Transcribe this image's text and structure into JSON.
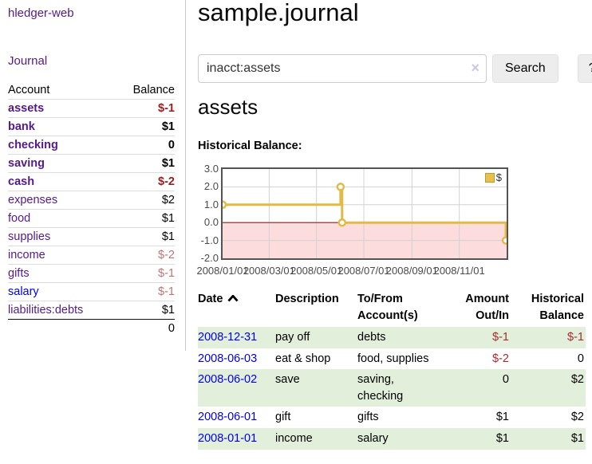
{
  "app": {
    "title": "hledger-web"
  },
  "colors": {
    "purple": "#551a8b",
    "blue": "#0000ee",
    "neg-strong": "#9d1d20",
    "neg-soft": "#b97676",
    "neg-table": "#a12f2f",
    "row-green": "#e2efdb"
  },
  "sidebar": {
    "journal_label": "Journal",
    "accounts": {
      "headers": {
        "account": "Account",
        "balance": "Balance"
      },
      "rows": [
        {
          "name": "assets",
          "indent": 0,
          "bold": true,
          "balance": "$-1",
          "bal_class": "neg-strong"
        },
        {
          "name": "bank",
          "indent": 1,
          "bold": true,
          "balance": "$1",
          "bal_class": ""
        },
        {
          "name": "checking",
          "indent": 2,
          "bold": true,
          "balance": "0",
          "bal_class": ""
        },
        {
          "name": "saving",
          "indent": 2,
          "bold": true,
          "balance": "$1",
          "bal_class": ""
        },
        {
          "name": "cash",
          "indent": 1,
          "bold": true,
          "balance": "$-2",
          "bal_class": "neg-strong"
        },
        {
          "name": "expenses",
          "indent": 0,
          "bold": false,
          "balance": "$2",
          "bal_class": ""
        },
        {
          "name": "food",
          "indent": 1,
          "bold": false,
          "balance": "$1",
          "bal_class": ""
        },
        {
          "name": "supplies",
          "indent": 1,
          "bold": false,
          "balance": "$1",
          "bal_class": ""
        },
        {
          "name": "income",
          "indent": 0,
          "bold": false,
          "balance": "$-2",
          "bal_class": "neg-soft"
        },
        {
          "name": "gifts",
          "indent": 1,
          "bold": false,
          "balance": "$-1",
          "bal_class": "neg-soft"
        },
        {
          "name": "salary",
          "indent": 1,
          "bold": false,
          "balance": "$-1",
          "bal_class": "neg-soft",
          "link_color": "blue"
        },
        {
          "name": "liabilities:debts",
          "indent": 0,
          "bold": false,
          "balance": "$1",
          "bal_class": ""
        }
      ],
      "total": "0"
    }
  },
  "main": {
    "title": "sample.journal",
    "search": {
      "value": "inacct:assets",
      "clear_icon": "×",
      "button_label": "Search",
      "help_label": "?"
    },
    "account_heading": "assets",
    "chart_heading": "Historical Balance:"
  },
  "chart_data": {
    "type": "line",
    "step": true,
    "title": "Historical Balance",
    "series_name": "$",
    "legend": {
      "label": "$",
      "position": "top-right"
    },
    "x": [
      "2008-01-01",
      "2008-06-01",
      "2008-06-03",
      "2008-12-31"
    ],
    "y": [
      1,
      2,
      0,
      -1
    ],
    "xlim": [
      "2008-01-01",
      "2009-01-01"
    ],
    "ylim": [
      -2,
      3
    ],
    "yticks": [
      "3.0",
      "2.0",
      "1.0",
      "0.0",
      "-1.0",
      "-2.0"
    ],
    "xticks": [
      {
        "label": "2008/01/01",
        "date": "2008-01-01"
      },
      {
        "label": "2008/03/01",
        "date": "2008-03-01"
      },
      {
        "label": "2008/05/01",
        "date": "2008-05-01"
      },
      {
        "label": "2008/07/01",
        "date": "2008-07-01"
      },
      {
        "label": "2008/09/01",
        "date": "2008-09-01"
      },
      {
        "label": "2008/11/01",
        "date": "2008-11-01"
      }
    ],
    "grid": true,
    "colors": {
      "line": "#e3ba45",
      "marker_fill": "#ffffff",
      "negative_fill": "#fcdcdc",
      "zero_line": "#8e1a1a",
      "grid": "#d2d2d2"
    }
  },
  "register": {
    "headers": {
      "date": "Date",
      "description": "Description",
      "accounts": "To/From Account(s)",
      "amount": "Amount Out/In",
      "balance": "Historical Balance"
    },
    "rows": [
      {
        "date": "2008-12-31",
        "description": "pay off",
        "accounts": "debts",
        "amount": "$-1",
        "amount_neg": true,
        "balance": "$-1",
        "balance_neg": true
      },
      {
        "date": "2008-06-03",
        "description": "eat & shop",
        "accounts": "food, supplies",
        "amount": "$-2",
        "amount_neg": true,
        "balance": "0",
        "balance_neg": false
      },
      {
        "date": "2008-06-02",
        "description": "save",
        "accounts": "saving, checking",
        "amount": "0",
        "amount_neg": false,
        "balance": "$2",
        "balance_neg": false
      },
      {
        "date": "2008-06-01",
        "description": "gift",
        "accounts": "gifts",
        "amount": "$1",
        "amount_neg": false,
        "balance": "$2",
        "balance_neg": false
      },
      {
        "date": "2008-01-01",
        "description": "income",
        "accounts": "salary",
        "amount": "$1",
        "amount_neg": false,
        "balance": "$1",
        "balance_neg": false
      }
    ]
  }
}
